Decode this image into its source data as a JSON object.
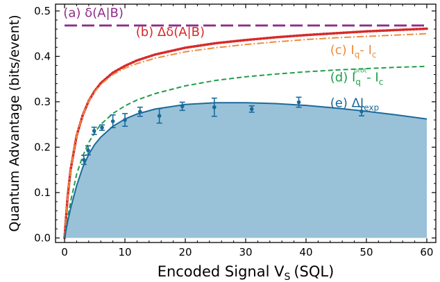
{
  "chart_data": {
    "type": "line",
    "xlabel": "Encoded Signal V",
    "xlabel_sub": "S",
    "xlabel_unit": "(SQL)",
    "ylabel": "Quantum Advantage (bits/event)",
    "xlim": [
      -1.5,
      61.5
    ],
    "ylim": [
      -0.01,
      0.515
    ],
    "xticks": [
      0,
      10,
      20,
      30,
      40,
      50,
      60
    ],
    "yticks": [
      0.0,
      0.1,
      0.2,
      0.3,
      0.4,
      0.5
    ],
    "xtick_labels": [
      "0",
      "10",
      "20",
      "30",
      "40",
      "50",
      "60"
    ],
    "ytick_labels": [
      "0.0",
      "0.1",
      "0.2",
      "0.3",
      "0.4",
      "0.5"
    ],
    "grid": false,
    "series": [
      {
        "key": "a",
        "style": "long-dash",
        "color": "#8e2c8a",
        "label_parts": [
          "(a) δ(A|B)"
        ],
        "x": [
          0,
          60
        ],
        "y": [
          0.468,
          0.468
        ]
      },
      {
        "key": "b",
        "style": "dotted",
        "color": "#d62a2a",
        "label_parts": [
          "(b) Δδ(A|B)"
        ],
        "x": [
          0,
          0.5,
          1,
          2,
          3,
          4,
          5,
          6,
          8,
          10,
          12,
          15,
          20,
          25,
          30,
          35,
          40,
          45,
          50,
          55,
          60
        ],
        "y": [
          0.0,
          0.09,
          0.15,
          0.225,
          0.27,
          0.302,
          0.324,
          0.341,
          0.364,
          0.379,
          0.391,
          0.404,
          0.419,
          0.429,
          0.436,
          0.442,
          0.447,
          0.451,
          0.455,
          0.458,
          0.461
        ]
      },
      {
        "key": "c",
        "style": "dash-dot",
        "color": "#f08a3c",
        "label_parts": [
          "(c) I",
          "q",
          "- I",
          "c"
        ],
        "x": [
          0,
          0.5,
          1,
          2,
          3,
          4,
          5,
          6,
          8,
          10,
          12,
          15,
          20,
          25,
          30,
          35,
          40,
          45,
          50,
          55,
          60
        ],
        "y": [
          0.0,
          0.09,
          0.15,
          0.225,
          0.27,
          0.302,
          0.322,
          0.338,
          0.36,
          0.374,
          0.384,
          0.396,
          0.41,
          0.419,
          0.426,
          0.432,
          0.437,
          0.441,
          0.444,
          0.447,
          0.45
        ]
      },
      {
        "key": "d",
        "style": "dashed",
        "color": "#1e9e4a",
        "label_parts": [
          "(d) I",
          "q",
          "prot",
          "- I",
          "c"
        ],
        "x": [
          0,
          1,
          2,
          3,
          4,
          5,
          6,
          8,
          10,
          12,
          15,
          20,
          25,
          30,
          35,
          40,
          45,
          50,
          55,
          60
        ],
        "y": [
          0.0,
          0.08,
          0.14,
          0.18,
          0.21,
          0.232,
          0.25,
          0.274,
          0.291,
          0.304,
          0.318,
          0.335,
          0.347,
          0.355,
          0.361,
          0.366,
          0.37,
          0.373,
          0.376,
          0.378
        ]
      },
      {
        "key": "e",
        "style": "solid-filled",
        "color": "#1a6a9a",
        "fill": "#99c2d9",
        "label_parts": [
          "(e) ΔI",
          "exp"
        ],
        "x": [
          0,
          0.5,
          1,
          2,
          3,
          4,
          5,
          6,
          8,
          10,
          12,
          15,
          20,
          25,
          30,
          35,
          40,
          45,
          50,
          55,
          60
        ],
        "y": [
          0.0,
          0.035,
          0.065,
          0.115,
          0.155,
          0.184,
          0.206,
          0.222,
          0.246,
          0.262,
          0.273,
          0.284,
          0.294,
          0.298,
          0.298,
          0.296,
          0.292,
          0.286,
          0.279,
          0.271,
          0.262
        ]
      }
    ],
    "points": {
      "name": "experimental data",
      "color": "#1a6a9a",
      "x": [
        3.2,
        3.9,
        4.9,
        6.2,
        8.0,
        10.0,
        12.5,
        15.7,
        19.5,
        24.8,
        31.0,
        38.8,
        49.2
      ],
      "y": [
        0.172,
        0.193,
        0.236,
        0.243,
        0.257,
        0.26,
        0.278,
        0.269,
        0.29,
        0.288,
        0.284,
        0.299,
        0.279
      ],
      "err": [
        0.01,
        0.01,
        0.008,
        0.006,
        0.014,
        0.014,
        0.01,
        0.016,
        0.009,
        0.02,
        0.007,
        0.011,
        0.01
      ]
    },
    "annotations": [
      {
        "key": "a",
        "x": -0.2,
        "y": 0.487
      },
      {
        "key": "b",
        "x": 11.8,
        "y": 0.445
      },
      {
        "key": "c",
        "x": 44.0,
        "y": 0.405
      },
      {
        "key": "d",
        "x": 44.0,
        "y": 0.345
      },
      {
        "key": "e",
        "x": 44.0,
        "y": 0.288
      }
    ]
  }
}
